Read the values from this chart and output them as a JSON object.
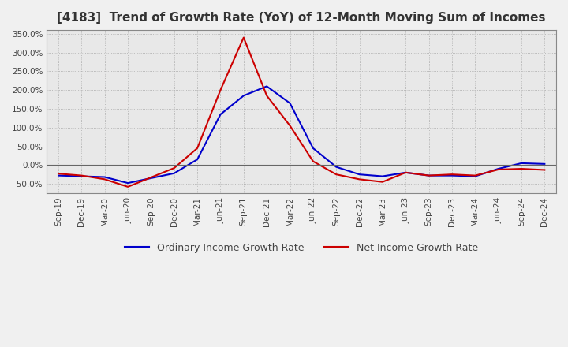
{
  "title": "[4183]  Trend of Growth Rate (YoY) of 12-Month Moving Sum of Incomes",
  "title_fontsize": 11,
  "x_labels": [
    "Sep-19",
    "Dec-19",
    "Mar-20",
    "Jun-20",
    "Sep-20",
    "Dec-20",
    "Mar-21",
    "Jun-21",
    "Sep-21",
    "Dec-21",
    "Mar-22",
    "Jun-22",
    "Sep-22",
    "Dec-22",
    "Mar-23",
    "Jun-23",
    "Sep-23",
    "Dec-23",
    "Mar-24",
    "Jun-24",
    "Sep-24",
    "Dec-24"
  ],
  "ordinary_income": [
    -28,
    -30,
    -32,
    -48,
    -35,
    -22,
    15,
    135,
    185,
    210,
    165,
    45,
    -5,
    -25,
    -30,
    -20,
    -28,
    -28,
    -30,
    -10,
    5,
    3
  ],
  "net_income": [
    -23,
    -28,
    -38,
    -58,
    -33,
    -8,
    45,
    200,
    340,
    185,
    105,
    10,
    -25,
    -38,
    -45,
    -20,
    -28,
    -25,
    -28,
    -12,
    -10,
    -13
  ],
  "ordinary_color": "#0000cc",
  "net_color": "#cc0000",
  "ylim": [
    -75,
    360
  ],
  "yticks": [
    -50,
    0,
    50,
    100,
    150,
    200,
    250,
    300,
    350
  ],
  "bg_color": "#f0f0f0",
  "plot_bg_color": "#e8e8e8",
  "grid_color": "#aaaaaa",
  "legend_ordinary": "Ordinary Income Growth Rate",
  "legend_net": "Net Income Growth Rate"
}
